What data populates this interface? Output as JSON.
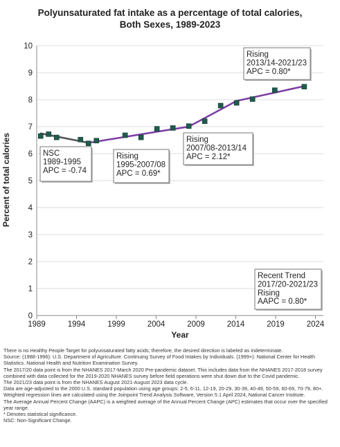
{
  "chart_data": {
    "type": "scatter",
    "title_lines": [
      "Polyunsaturated fat intake as a percentage of total calories,",
      "Both Sexes,  1989-2023"
    ],
    "xlabel": "Year",
    "ylabel": "Percent of total calories",
    "xlim": [
      1989,
      2025
    ],
    "ylim": [
      0,
      10
    ],
    "x_ticks": [
      1989,
      1994,
      1999,
      2004,
      2009,
      2014,
      2019,
      2024
    ],
    "y_ticks": [
      0,
      1,
      2,
      3,
      4,
      5,
      6,
      7,
      8,
      9,
      10
    ],
    "grid": "horizontal",
    "points": [
      {
        "x": 1989.5,
        "y": 6.65
      },
      {
        "x": 1990.5,
        "y": 6.72
      },
      {
        "x": 1991.5,
        "y": 6.6
      },
      {
        "x": 1994.5,
        "y": 6.52
      },
      {
        "x": 1995.5,
        "y": 6.38
      },
      {
        "x": 1996.5,
        "y": 6.48
      },
      {
        "x": 2000.1,
        "y": 6.68
      },
      {
        "x": 2002.1,
        "y": 6.6
      },
      {
        "x": 2004.1,
        "y": 6.92
      },
      {
        "x": 2006.1,
        "y": 6.95
      },
      {
        "x": 2008.1,
        "y": 7.02
      },
      {
        "x": 2010.1,
        "y": 7.2
      },
      {
        "x": 2012.1,
        "y": 7.78
      },
      {
        "x": 2014.1,
        "y": 7.88
      },
      {
        "x": 2016.1,
        "y": 8.02
      },
      {
        "x": 2018.9,
        "y": 8.35
      },
      {
        "x": 2022.6,
        "y": 8.48
      }
    ],
    "trend_segments": [
      {
        "label": "NSC",
        "color": "#555555",
        "points": [
          [
            1989.5,
            6.75
          ],
          [
            1995.5,
            6.4
          ]
        ]
      },
      {
        "label": "Rising 1995-2007/08",
        "color": "#7b3fa3",
        "points": [
          [
            1995.5,
            6.4
          ],
          [
            2008.1,
            7.0
          ]
        ]
      },
      {
        "label": "Rising 2007/08-2013/14",
        "color": "#7b3fa3",
        "points": [
          [
            2008.1,
            7.0
          ],
          [
            2014.1,
            7.95
          ]
        ]
      },
      {
        "label": "Rising 2013/14-2021/23",
        "color": "#7b3fa3",
        "points": [
          [
            2014.1,
            7.95
          ],
          [
            2022.6,
            8.5
          ]
        ]
      }
    ],
    "marker_color": "#1f5c4e",
    "annotations": [
      {
        "lines": [
          "NSC",
          "1989-1995",
          "APC = -0.74"
        ]
      },
      {
        "lines": [
          "Rising",
          "1995-2007/08",
          "APC =  0.69*"
        ]
      },
      {
        "lines": [
          "Rising",
          "2007/08-2013/14",
          "APC =  2.12*"
        ]
      },
      {
        "lines": [
          "Rising",
          "2013/14-2021/23",
          "APC =  0.80*"
        ]
      },
      {
        "lines": [
          "Recent Trend",
          "2017/20-2021/23",
          "Rising",
          "AAPC =  0.80*"
        ]
      }
    ]
  },
  "footnotes": [
    "There is no Healthy People Target for polyunsaturated fatty acids; therefore, the desired direction is labeled as indeterminate.",
    "Source: (1988-1996): U.S. Department of Agriculture. Continuing Survey of Food Intakes by Individuals. (1999+): National Center for Health Statistics. National Health and Nutrition Examination Survey.",
    "The 2017/20 data point is from the NHANES 2017-March 2020 Pre-pandemic dataset. This includes data from the NHANES 2017-2018 survey combined with data collected for the 2019-2020 NHANES survey before field operations were shut down due to the Covid pandemic.",
    "The 2021/23 data point is from the NHANES August 2021-August 2023 data cycle.",
    "Data are age-adjusted to the 2000 U.S. standard population using age groups: 2-5, 6-11, 12-19, 20-29, 30-39, 40-49, 50-59, 60-69, 70-79, 80+.",
    "Weighted regression lines are calculated using the Joinpoint Trend Analysis Software, Version 5.1 April 2024, National Cancer Institute.",
    "The Average Annual Percent Change (AAPC) is a weighted average of the Annual Percent Change (APC) estimates that occur over the specified year range.",
    "* Denotes statistical significance.",
    "NSC: Non-Significant Change."
  ]
}
